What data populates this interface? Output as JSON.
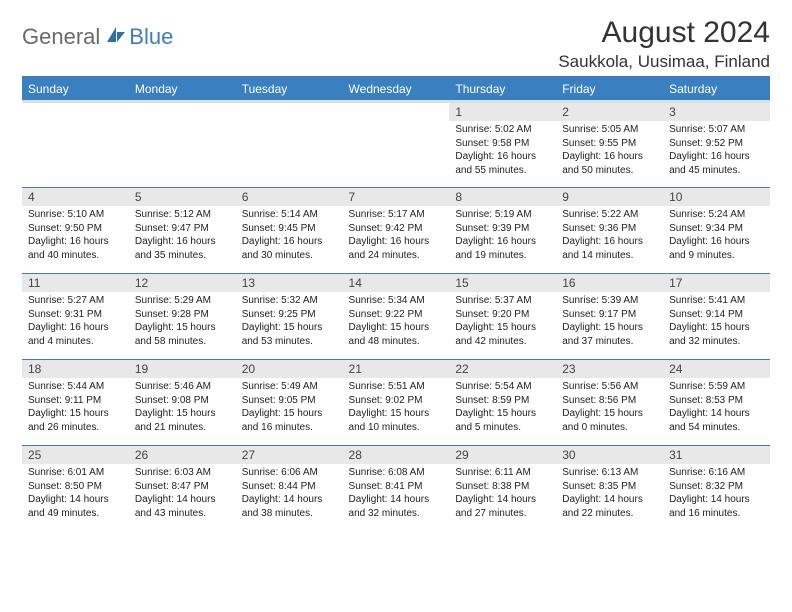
{
  "brand": {
    "general": "General",
    "blue": "Blue"
  },
  "title": "August 2024",
  "location": "Saukkola, Uusimaa, Finland",
  "daynames": [
    "Sunday",
    "Monday",
    "Tuesday",
    "Wednesday",
    "Thursday",
    "Friday",
    "Saturday"
  ],
  "header_bg": "#3a7fbf",
  "rule_color": "#3a7fbf",
  "shade_color": "#e8e8e8",
  "bg_color": "#ffffff",
  "weeks": [
    [
      {
        "n": "",
        "sr": "",
        "ss": "",
        "dl": ""
      },
      {
        "n": "",
        "sr": "",
        "ss": "",
        "dl": ""
      },
      {
        "n": "",
        "sr": "",
        "ss": "",
        "dl": ""
      },
      {
        "n": "",
        "sr": "",
        "ss": "",
        "dl": ""
      },
      {
        "n": "1",
        "sr": "5:02 AM",
        "ss": "9:58 PM",
        "dl": "16 hours and 55 minutes."
      },
      {
        "n": "2",
        "sr": "5:05 AM",
        "ss": "9:55 PM",
        "dl": "16 hours and 50 minutes."
      },
      {
        "n": "3",
        "sr": "5:07 AM",
        "ss": "9:52 PM",
        "dl": "16 hours and 45 minutes."
      }
    ],
    [
      {
        "n": "4",
        "sr": "5:10 AM",
        "ss": "9:50 PM",
        "dl": "16 hours and 40 minutes."
      },
      {
        "n": "5",
        "sr": "5:12 AM",
        "ss": "9:47 PM",
        "dl": "16 hours and 35 minutes."
      },
      {
        "n": "6",
        "sr": "5:14 AM",
        "ss": "9:45 PM",
        "dl": "16 hours and 30 minutes."
      },
      {
        "n": "7",
        "sr": "5:17 AM",
        "ss": "9:42 PM",
        "dl": "16 hours and 24 minutes."
      },
      {
        "n": "8",
        "sr": "5:19 AM",
        "ss": "9:39 PM",
        "dl": "16 hours and 19 minutes."
      },
      {
        "n": "9",
        "sr": "5:22 AM",
        "ss": "9:36 PM",
        "dl": "16 hours and 14 minutes."
      },
      {
        "n": "10",
        "sr": "5:24 AM",
        "ss": "9:34 PM",
        "dl": "16 hours and 9 minutes."
      }
    ],
    [
      {
        "n": "11",
        "sr": "5:27 AM",
        "ss": "9:31 PM",
        "dl": "16 hours and 4 minutes."
      },
      {
        "n": "12",
        "sr": "5:29 AM",
        "ss": "9:28 PM",
        "dl": "15 hours and 58 minutes."
      },
      {
        "n": "13",
        "sr": "5:32 AM",
        "ss": "9:25 PM",
        "dl": "15 hours and 53 minutes."
      },
      {
        "n": "14",
        "sr": "5:34 AM",
        "ss": "9:22 PM",
        "dl": "15 hours and 48 minutes."
      },
      {
        "n": "15",
        "sr": "5:37 AM",
        "ss": "9:20 PM",
        "dl": "15 hours and 42 minutes."
      },
      {
        "n": "16",
        "sr": "5:39 AM",
        "ss": "9:17 PM",
        "dl": "15 hours and 37 minutes."
      },
      {
        "n": "17",
        "sr": "5:41 AM",
        "ss": "9:14 PM",
        "dl": "15 hours and 32 minutes."
      }
    ],
    [
      {
        "n": "18",
        "sr": "5:44 AM",
        "ss": "9:11 PM",
        "dl": "15 hours and 26 minutes."
      },
      {
        "n": "19",
        "sr": "5:46 AM",
        "ss": "9:08 PM",
        "dl": "15 hours and 21 minutes."
      },
      {
        "n": "20",
        "sr": "5:49 AM",
        "ss": "9:05 PM",
        "dl": "15 hours and 16 minutes."
      },
      {
        "n": "21",
        "sr": "5:51 AM",
        "ss": "9:02 PM",
        "dl": "15 hours and 10 minutes."
      },
      {
        "n": "22",
        "sr": "5:54 AM",
        "ss": "8:59 PM",
        "dl": "15 hours and 5 minutes."
      },
      {
        "n": "23",
        "sr": "5:56 AM",
        "ss": "8:56 PM",
        "dl": "15 hours and 0 minutes."
      },
      {
        "n": "24",
        "sr": "5:59 AM",
        "ss": "8:53 PM",
        "dl": "14 hours and 54 minutes."
      }
    ],
    [
      {
        "n": "25",
        "sr": "6:01 AM",
        "ss": "8:50 PM",
        "dl": "14 hours and 49 minutes."
      },
      {
        "n": "26",
        "sr": "6:03 AM",
        "ss": "8:47 PM",
        "dl": "14 hours and 43 minutes."
      },
      {
        "n": "27",
        "sr": "6:06 AM",
        "ss": "8:44 PM",
        "dl": "14 hours and 38 minutes."
      },
      {
        "n": "28",
        "sr": "6:08 AM",
        "ss": "8:41 PM",
        "dl": "14 hours and 32 minutes."
      },
      {
        "n": "29",
        "sr": "6:11 AM",
        "ss": "8:38 PM",
        "dl": "14 hours and 27 minutes."
      },
      {
        "n": "30",
        "sr": "6:13 AM",
        "ss": "8:35 PM",
        "dl": "14 hours and 22 minutes."
      },
      {
        "n": "31",
        "sr": "6:16 AM",
        "ss": "8:32 PM",
        "dl": "14 hours and 16 minutes."
      }
    ]
  ]
}
